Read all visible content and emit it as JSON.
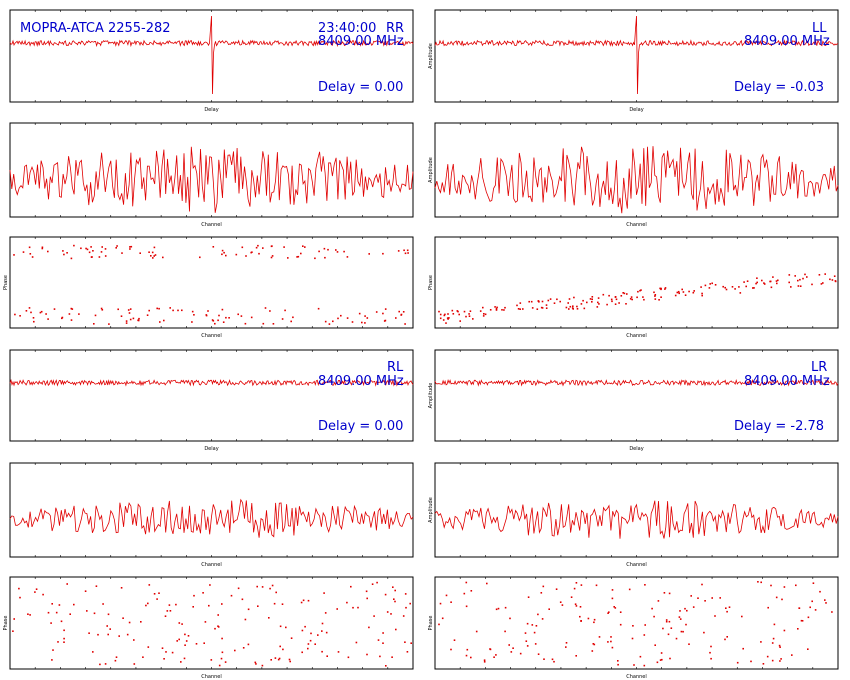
{
  "header": {
    "source_label": "MOPRA-ATCA 2255-282",
    "time_label": "23:40:00",
    "frequency_label": "8409.00 MHz"
  },
  "colors": {
    "data": "#e00000",
    "annotation": "#0000cc",
    "axis": "#000000"
  },
  "panels": [
    {
      "id": "RR",
      "column": 0,
      "block": 0,
      "delay_label": "Delay = 0.00"
    },
    {
      "id": "LL",
      "column": 1,
      "block": 0,
      "delay_label": "Delay = -0.03"
    },
    {
      "id": "RL",
      "column": 0,
      "block": 1,
      "delay_label": "Delay = 0.00"
    },
    {
      "id": "LR",
      "column": 1,
      "block": 1,
      "delay_label": "Delay = -2.78"
    }
  ],
  "axis_labels": {
    "delay": "Delay",
    "channel": "Channel",
    "amplitude": "Amplitude",
    "phase": "Phase"
  },
  "chart_data": [
    {
      "type": "line",
      "subplot": "delay-spectrum",
      "polarisations": [
        "RR",
        "LL",
        "RL",
        "LR"
      ],
      "xlabel": "Delay",
      "ylabel": "Amplitude",
      "series": [
        {
          "name": "RR",
          "delay": 0.0,
          "peak_at_center": true
        },
        {
          "name": "LL",
          "delay": -0.03,
          "peak_at_center": true
        },
        {
          "name": "RL",
          "delay": 0.0,
          "peak_at_center": false
        },
        {
          "name": "LR",
          "delay": -2.78,
          "peak_at_center": false
        }
      ]
    },
    {
      "type": "line",
      "subplot": "amplitude-vs-channel",
      "polarisations": [
        "RR",
        "LL",
        "RL",
        "LR"
      ],
      "xlabel": "Channel",
      "ylabel": "Amplitude"
    },
    {
      "type": "scatter",
      "subplot": "phase-vs-channel",
      "polarisations": [
        "RR",
        "LL",
        "RL",
        "LR"
      ],
      "xlabel": "Channel",
      "ylabel": "Phase"
    }
  ]
}
